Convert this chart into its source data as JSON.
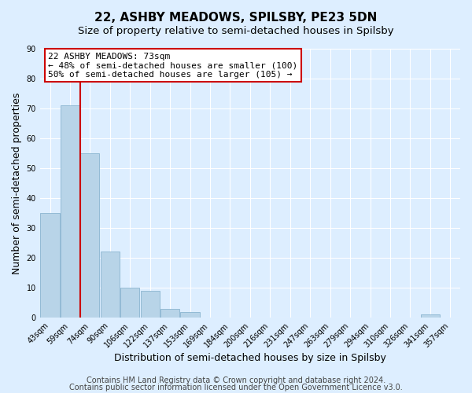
{
  "title": "22, ASHBY MEADOWS, SPILSBY, PE23 5DN",
  "subtitle": "Size of property relative to semi-detached houses in Spilsby",
  "xlabel": "Distribution of semi-detached houses by size in Spilsby",
  "ylabel": "Number of semi-detached properties",
  "bins": [
    "43sqm",
    "59sqm",
    "74sqm",
    "90sqm",
    "106sqm",
    "122sqm",
    "137sqm",
    "153sqm",
    "169sqm",
    "184sqm",
    "200sqm",
    "216sqm",
    "231sqm",
    "247sqm",
    "263sqm",
    "279sqm",
    "294sqm",
    "310sqm",
    "326sqm",
    "341sqm",
    "357sqm"
  ],
  "values": [
    35,
    71,
    55,
    22,
    10,
    9,
    3,
    2,
    0,
    0,
    0,
    0,
    0,
    0,
    0,
    0,
    0,
    0,
    0,
    1,
    0
  ],
  "bar_color": "#b8d4e8",
  "bar_edge_color": "#8ab4d0",
  "highlight_edge_color": "#cc0000",
  "red_line_bin": 2,
  "marker_label": "22 ASHBY MEADOWS: 73sqm",
  "annotation_smaller": "← 48% of semi-detached houses are smaller (100)",
  "annotation_larger": "50% of semi-detached houses are larger (105) →",
  "ylim": [
    0,
    90
  ],
  "yticks": [
    0,
    10,
    20,
    30,
    40,
    50,
    60,
    70,
    80,
    90
  ],
  "footer1": "Contains HM Land Registry data © Crown copyright and database right 2024.",
  "footer2": "Contains public sector information licensed under the Open Government Licence v3.0.",
  "bg_color": "#ddeeff",
  "plot_bg_color": "#ddeeff",
  "grid_color": "#ffffff",
  "annotation_box_edge": "#cc0000",
  "title_fontsize": 11,
  "subtitle_fontsize": 9.5,
  "axis_label_fontsize": 9,
  "tick_fontsize": 7,
  "footer_fontsize": 7,
  "annotation_fontsize": 8
}
